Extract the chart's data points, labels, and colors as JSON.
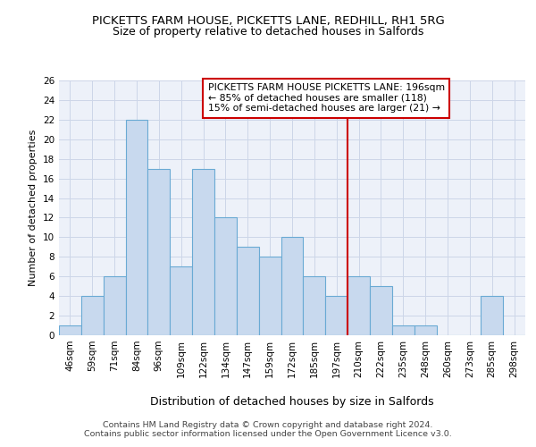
{
  "title": "PICKETTS FARM HOUSE, PICKETTS LANE, REDHILL, RH1 5RG",
  "subtitle": "Size of property relative to detached houses in Salfords",
  "xlabel": "Distribution of detached houses by size in Salfords",
  "ylabel": "Number of detached properties",
  "categories": [
    "46sqm",
    "59sqm",
    "71sqm",
    "84sqm",
    "96sqm",
    "109sqm",
    "122sqm",
    "134sqm",
    "147sqm",
    "159sqm",
    "172sqm",
    "185sqm",
    "197sqm",
    "210sqm",
    "222sqm",
    "235sqm",
    "248sqm",
    "260sqm",
    "273sqm",
    "285sqm",
    "298sqm"
  ],
  "values": [
    1,
    4,
    6,
    22,
    17,
    7,
    17,
    12,
    9,
    8,
    10,
    6,
    4,
    6,
    5,
    1,
    1,
    0,
    0,
    4,
    0
  ],
  "bar_color": "#c8d9ee",
  "bar_edge_color": "#6aaad4",
  "vline_x_index": 12,
  "vline_color": "#cc0000",
  "annotation_text": "PICKETTS FARM HOUSE PICKETTS LANE: 196sqm\n← 85% of detached houses are smaller (118)\n15% of semi-detached houses are larger (21) →",
  "annotation_box_color": "#ffffff",
  "annotation_box_edge": "#cc0000",
  "ylim": [
    0,
    26
  ],
  "yticks": [
    0,
    2,
    4,
    6,
    8,
    10,
    12,
    14,
    16,
    18,
    20,
    22,
    24,
    26
  ],
  "grid_color": "#cdd6e8",
  "background_color": "#edf1f9",
  "footer": "Contains HM Land Registry data © Crown copyright and database right 2024.\nContains public sector information licensed under the Open Government Licence v3.0.",
  "title_fontsize": 9.5,
  "subtitle_fontsize": 9,
  "xlabel_fontsize": 9,
  "ylabel_fontsize": 8,
  "tick_fontsize": 7.5,
  "annotation_fontsize": 7.8,
  "footer_fontsize": 6.8
}
